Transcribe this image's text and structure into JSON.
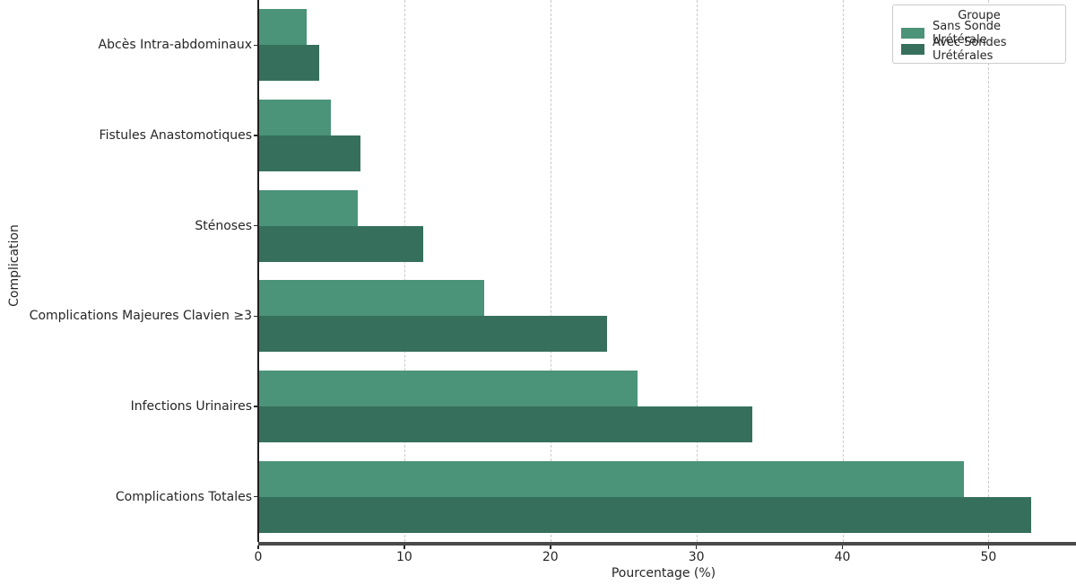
{
  "chart_data": {
    "type": "bar",
    "orientation": "horizontal",
    "title": "",
    "xlabel": "Pourcentage (%)",
    "ylabel": "Complication",
    "legend_title": "Groupe",
    "legend_position": "upper right",
    "grid": "vertical dashed gridlines at x ticks",
    "categories": [
      "Abcès Intra-abdominaux",
      "Fistules Anastomotiques",
      "Sténoses",
      "Complications Majeures Clavien ≥3",
      "Infections Urinaires",
      "Complications Totales"
    ],
    "series": [
      {
        "name": "Sans Sonde Urétérale",
        "color": "#4b9379",
        "values": [
          3.3,
          5.0,
          6.8,
          15.5,
          26.0,
          48.3
        ]
      },
      {
        "name": "Avec Sondes Urétérales",
        "color": "#36705c",
        "values": [
          4.2,
          7.0,
          11.3,
          23.9,
          33.8,
          52.9
        ]
      }
    ],
    "x_ticks": [
      0,
      10,
      20,
      30,
      40,
      50
    ],
    "xlim": [
      0,
      55.5
    ]
  }
}
